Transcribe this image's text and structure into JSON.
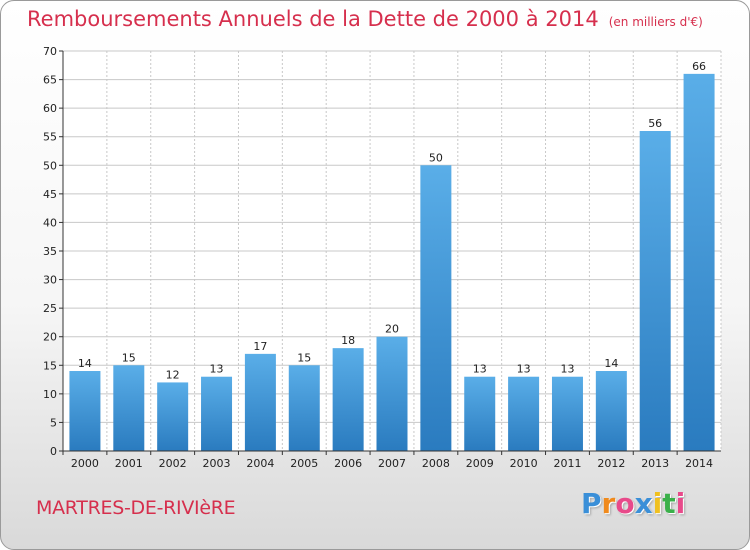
{
  "chart_data": {
    "type": "bar",
    "title": "Remboursements Annuels de la Dette de 2000 à 2014",
    "subtitle": "(en milliers d'€)",
    "categories": [
      "2000",
      "2001",
      "2002",
      "2003",
      "2004",
      "2005",
      "2006",
      "2007",
      "2008",
      "2009",
      "2010",
      "2011",
      "2012",
      "2013",
      "2014"
    ],
    "values": [
      14,
      15,
      12,
      13,
      17,
      15,
      18,
      20,
      50,
      13,
      13,
      13,
      14,
      56,
      66
    ],
    "ylim": [
      0,
      70
    ],
    "yticks": [
      0,
      5,
      10,
      15,
      20,
      25,
      30,
      35,
      40,
      45,
      50,
      55,
      60,
      65,
      70
    ],
    "grid": true,
    "bar_color_top": "#5aaee8",
    "bar_color_bottom": "#2a7bbf"
  },
  "footer": {
    "town": "MARTRES-DE-RIVIèRE",
    "logo_letters": [
      "P",
      "r",
      "o",
      "x",
      "i",
      "t",
      "i"
    ],
    "logo_colors": [
      "#3a8fd8",
      "#f08a1c",
      "#e84a8a",
      "#3a8fd8",
      "#f0c020",
      "#3ab04a",
      "#e84a8a"
    ]
  },
  "colors": {
    "title": "#d62f4d",
    "grid": "#c8c8c8",
    "axis": "#333333"
  }
}
